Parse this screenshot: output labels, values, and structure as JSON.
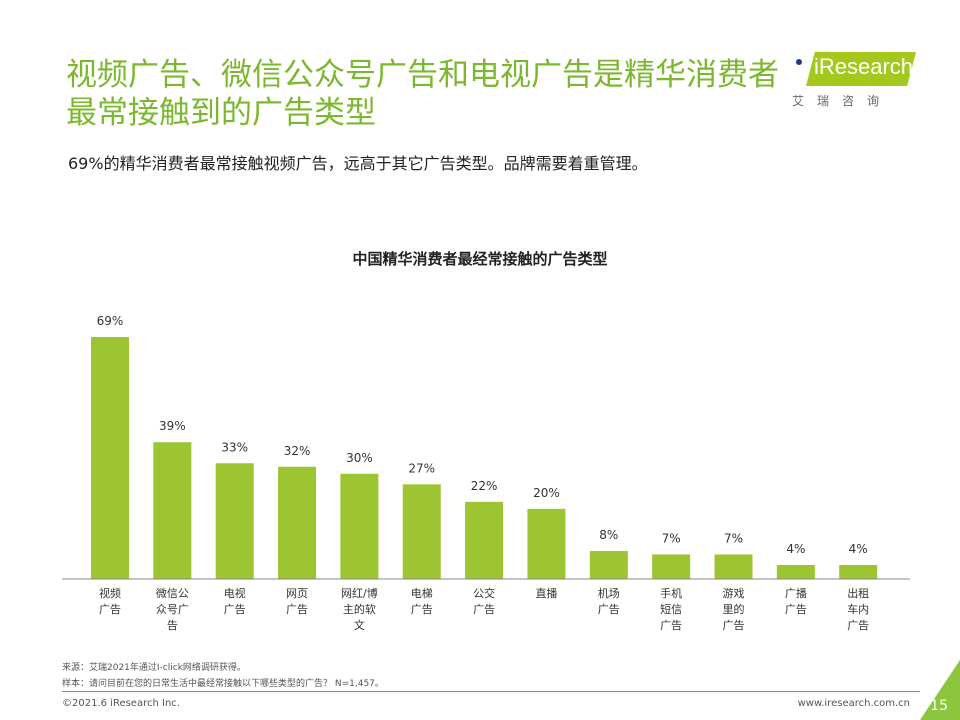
{
  "header": {
    "title": "视频广告、微信公众号广告和电视广告是精华消费者最常接触到的广告类型",
    "subtitle": "69%的精华消费者最常接触视频广告，远高于其它广告类型。品牌需要着重管理。"
  },
  "logo": {
    "text": "iResearch",
    "cn": "艾瑞咨询"
  },
  "chart_data": {
    "type": "bar",
    "title": "中国精华消费者最经常接触的广告类型",
    "categories": [
      "视频\n广告",
      "微信公\n众号广\n告",
      "电视\n广告",
      "网页\n广告",
      "网红/博\n主的软\n文",
      "电梯\n广告",
      "公交\n广告",
      "直播",
      "机场\n广告",
      "手机\n短信\n广告",
      "游戏\n里的\n广告",
      "广播\n广告",
      "出租\n车内\n广告"
    ],
    "values": [
      69,
      39,
      33,
      32,
      30,
      27,
      22,
      20,
      8,
      7,
      7,
      4,
      4
    ],
    "value_labels": [
      "69%",
      "39%",
      "33%",
      "32%",
      "30%",
      "27%",
      "22%",
      "20%",
      "8%",
      "7%",
      "7%",
      "4%",
      "4%"
    ],
    "ylim": [
      0,
      70
    ],
    "grid": false,
    "bar_color": "#9dc431"
  },
  "footer": {
    "source": "来源：艾瑞2021年通过I-click网络调研获得。",
    "sample": "样本：请问目前在您的日常生活中最经常接触以下哪些类型的广告？ N=1,457。",
    "copyright": "©2021.6 iResearch Inc.",
    "url": "www.iresearch.com.cn",
    "page": "15"
  }
}
